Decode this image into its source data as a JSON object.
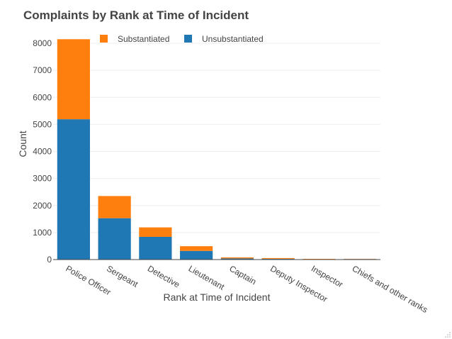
{
  "chart_data": {
    "type": "bar",
    "stacked": true,
    "title": "Complaints by Rank at Time of Incident",
    "xlabel": "Rank at Time of Incident",
    "ylabel": "Count",
    "categories": [
      "Police Officer",
      "Sergeant",
      "Detective",
      "Lieutenant",
      "Captain",
      "Deputy Inspector",
      "Inspector",
      "Chiefs and other ranks"
    ],
    "series": [
      {
        "name": "Unsubstantiated",
        "color": "#1f77b4",
        "values": [
          5190,
          1530,
          840,
          320,
          40,
          25,
          10,
          20
        ]
      },
      {
        "name": "Substantiated",
        "color": "#ff7f0e",
        "values": [
          2960,
          820,
          350,
          175,
          40,
          30,
          15,
          8
        ]
      }
    ],
    "ylim": [
      0,
      8000
    ],
    "yticks": [
      0,
      1000,
      2000,
      3000,
      4000,
      5000,
      6000,
      7000,
      8000
    ],
    "grid": true,
    "legend_position": "top-left"
  }
}
